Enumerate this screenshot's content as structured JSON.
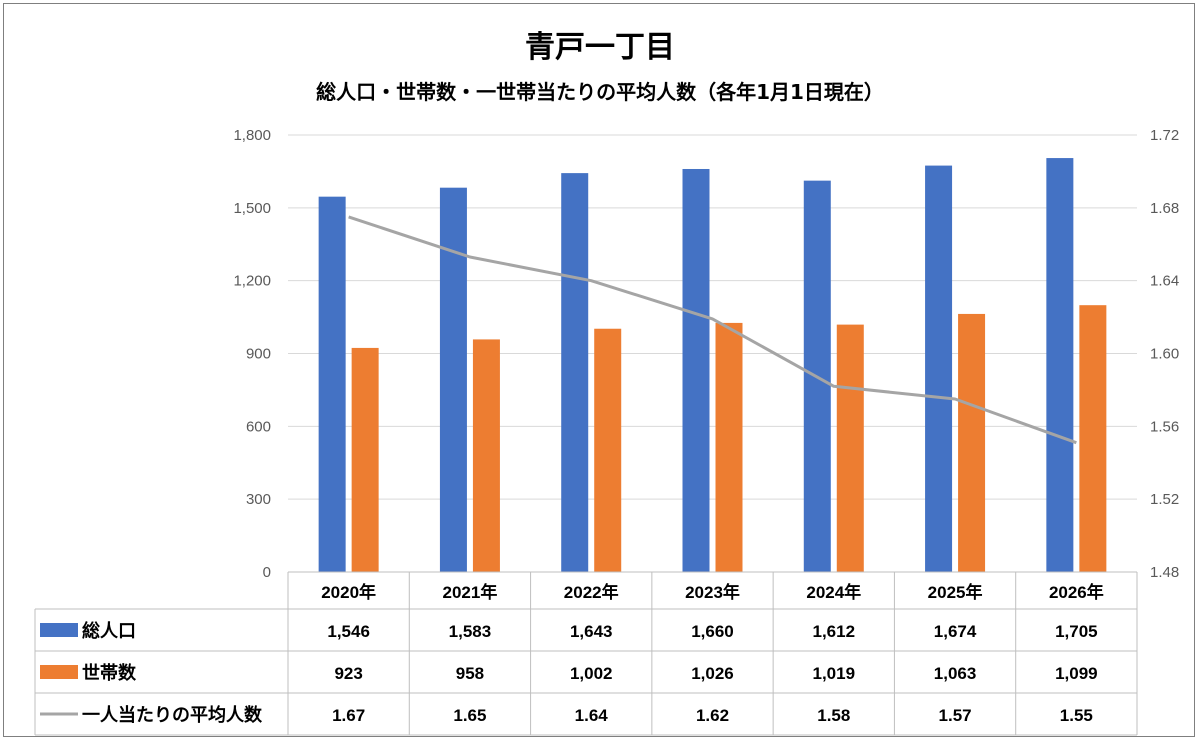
{
  "chart_data": {
    "type": "bar",
    "title": "青戸一丁目",
    "subtitle": "総人口・世帯数・一世帯当たりの平均人数（各年1月1日現在）",
    "categories": [
      "2020年",
      "2021年",
      "2022年",
      "2023年",
      "2024年",
      "2025年",
      "2026年"
    ],
    "series": [
      {
        "name": "総人口",
        "type": "bar",
        "axis": "left",
        "color": "#4472c4",
        "values": [
          1546,
          1583,
          1643,
          1660,
          1612,
          1674,
          1705
        ],
        "labels": [
          "1,546",
          "1,583",
          "1,643",
          "1,660",
          "1,612",
          "1,674",
          "1,705"
        ]
      },
      {
        "name": "世帯数",
        "type": "bar",
        "axis": "left",
        "color": "#ed7d31",
        "values": [
          923,
          958,
          1002,
          1026,
          1019,
          1063,
          1099
        ],
        "labels": [
          "923",
          "958",
          "1,002",
          "1,026",
          "1,019",
          "1,063",
          "1,099"
        ]
      },
      {
        "name": "一人当たりの平均人数",
        "type": "line",
        "axis": "right",
        "color": "#a5a5a5",
        "values": [
          1.675,
          1.653,
          1.64,
          1.619,
          1.582,
          1.575,
          1.551
        ],
        "labels": [
          "1.67",
          "1.65",
          "1.64",
          "1.62",
          "1.58",
          "1.57",
          "1.55"
        ]
      }
    ],
    "ylim_left": [
      0,
      1800
    ],
    "yticks_left": [
      "0",
      "300",
      "600",
      "900",
      "1,200",
      "1,500",
      "1,800"
    ],
    "ylim_right": [
      1.48,
      1.72
    ],
    "yticks_right": [
      "1.48",
      "1.52",
      "1.56",
      "1.60",
      "1.64",
      "1.68",
      "1.72"
    ],
    "grid": true,
    "legend": "data-table"
  }
}
